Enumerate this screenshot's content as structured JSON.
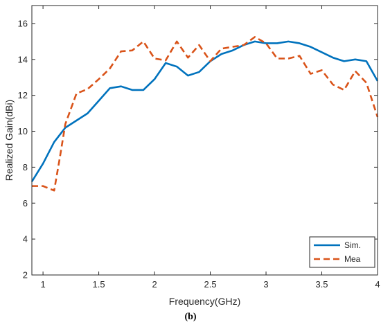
{
  "caption": "(b)",
  "chart_data": {
    "type": "line",
    "title": "",
    "xlabel": "Frequency(GHz)",
    "ylabel": "Realized Gain(dBi)",
    "xlim": [
      0.9,
      4.0
    ],
    "ylim": [
      2,
      17
    ],
    "xticks": [
      1,
      1.5,
      2,
      2.5,
      3,
      3.5,
      4
    ],
    "xtick_labels": [
      "1",
      "1.5",
      "2",
      "2.5",
      "3",
      "3.5",
      "4"
    ],
    "yticks": [
      2,
      4,
      6,
      8,
      10,
      12,
      14,
      16
    ],
    "ytick_labels": [
      "2",
      "4",
      "6",
      "8",
      "10",
      "12",
      "14",
      "16"
    ],
    "grid": false,
    "legend_position": "bottom-right",
    "series": [
      {
        "name": "Sim.",
        "color": "#0072BD",
        "dash": "solid",
        "x": [
          0.9,
          1.0,
          1.1,
          1.2,
          1.3,
          1.4,
          1.5,
          1.6,
          1.7,
          1.8,
          1.9,
          2.0,
          2.1,
          2.2,
          2.3,
          2.4,
          2.5,
          2.6,
          2.7,
          2.8,
          2.9,
          3.0,
          3.1,
          3.2,
          3.3,
          3.4,
          3.5,
          3.6,
          3.7,
          3.8,
          3.9,
          4.0
        ],
        "y": [
          7.2,
          8.2,
          9.4,
          10.2,
          10.6,
          11.0,
          11.7,
          12.4,
          12.5,
          12.3,
          12.3,
          12.9,
          13.8,
          13.6,
          13.1,
          13.3,
          13.9,
          14.3,
          14.5,
          14.8,
          15.0,
          14.9,
          14.9,
          15.0,
          14.9,
          14.7,
          14.4,
          14.1,
          13.9,
          14.0,
          13.9,
          12.8
        ]
      },
      {
        "name": "Mea",
        "color": "#D95319",
        "dash": "dashed",
        "x": [
          0.9,
          1.0,
          1.1,
          1.15,
          1.2,
          1.3,
          1.4,
          1.5,
          1.6,
          1.7,
          1.8,
          1.9,
          2.0,
          2.1,
          2.2,
          2.3,
          2.4,
          2.5,
          2.6,
          2.7,
          2.8,
          2.9,
          3.0,
          3.1,
          3.2,
          3.3,
          3.4,
          3.5,
          3.6,
          3.7,
          3.8,
          3.9,
          4.0
        ],
        "y": [
          6.95,
          6.95,
          6.7,
          8.5,
          10.4,
          12.1,
          12.35,
          12.9,
          13.5,
          14.45,
          14.5,
          15.0,
          14.05,
          13.95,
          15.0,
          14.1,
          14.8,
          13.9,
          14.6,
          14.7,
          14.8,
          15.25,
          14.9,
          14.05,
          14.05,
          14.2,
          13.2,
          13.4,
          12.6,
          12.3,
          13.35,
          12.7,
          10.8
        ]
      }
    ]
  }
}
